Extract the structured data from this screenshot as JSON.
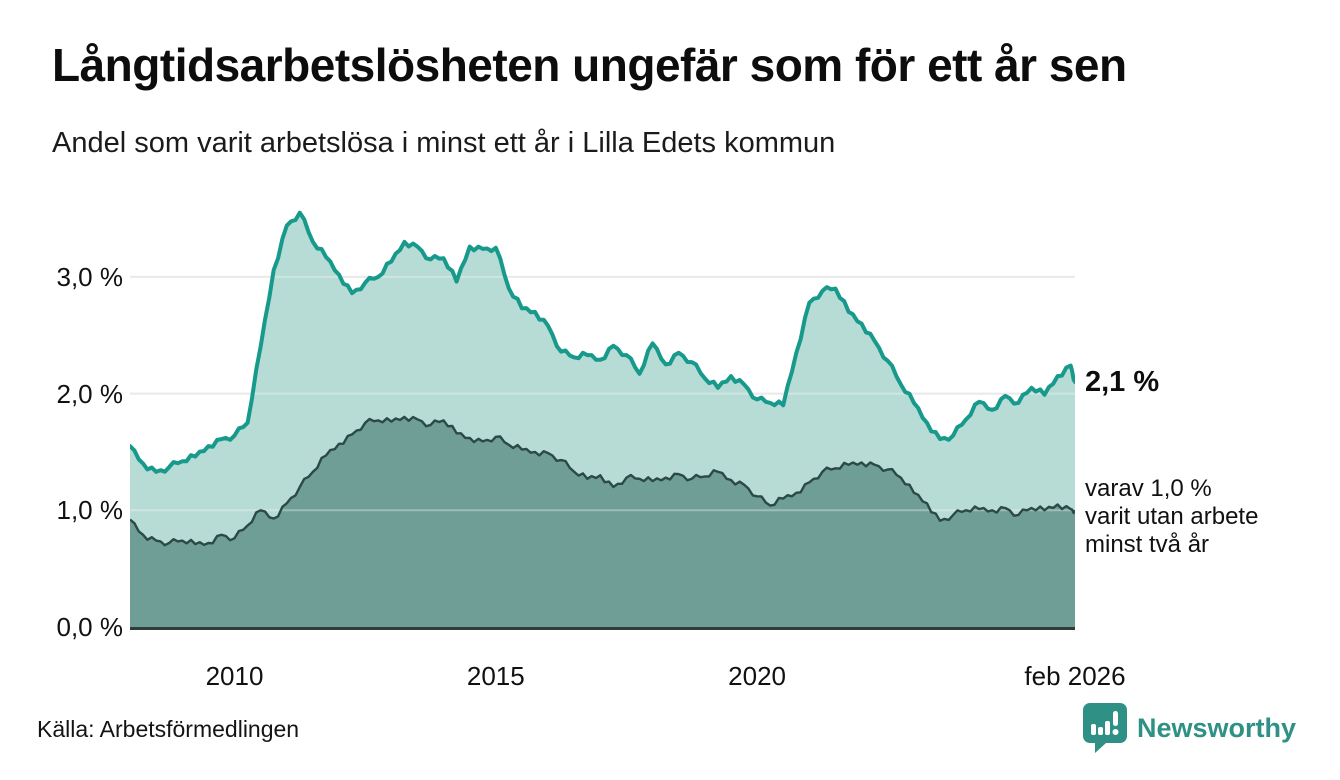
{
  "header": {
    "title": "Långtidsarbetslösheten ungefär som för ett år sen",
    "subtitle": "Andel som varit arbetslösa i minst ett år i Lilla Edets kommun"
  },
  "annotations": {
    "latest_total": "2,1 %",
    "two_year_lines": [
      "varav 1,0 %",
      "varit utan arbete",
      "minst två år"
    ]
  },
  "footer": {
    "source": "Källa: Arbetsförmedlingen",
    "brand": "Newsworthy",
    "brand_icon": "bar-chart-speech-bubble-icon"
  },
  "colors": {
    "line_total": "#179a8b",
    "fill_total": "#b7dbd5",
    "line_two_year": "#2c4a45",
    "fill_two_year": "#6f9e97",
    "grid": "#e0e0e0",
    "grid_over_fill": "rgba(255,255,255,0.32)",
    "axis": "#2e3d3a",
    "brand": "#2f9086",
    "text": "#111111"
  },
  "chart_data": {
    "type": "area",
    "title": "Långtidsarbetslösheten ungefär som för ett år sen",
    "subtitle": "Andel som varit arbetslösa i minst ett år i Lilla Edets kommun",
    "unit": "%",
    "grid": "horizontal",
    "legend_position": "right-annotations",
    "x_domain": [
      2008.0,
      2026.083
    ],
    "ylim": [
      0,
      3.77
    ],
    "yticks": [
      {
        "label": "3,0 %",
        "value": 3
      },
      {
        "label": "2,0 %",
        "value": 2
      },
      {
        "label": "1,0 %",
        "value": 1
      },
      {
        "label": "0,0 %",
        "value": 0
      }
    ],
    "xticks": [
      {
        "label": "2010",
        "year": 2010
      },
      {
        "label": "2015",
        "year": 2015
      },
      {
        "label": "2020",
        "year": 2020
      },
      {
        "label": "feb 2026",
        "year": 2026.083
      }
    ],
    "x": [
      2008,
      2008.25,
      2008.5,
      2008.75,
      2009,
      2009.25,
      2009.5,
      2009.75,
      2010,
      2010.25,
      2010.5,
      2010.75,
      2011,
      2011.25,
      2011.5,
      2011.75,
      2012,
      2012.25,
      2012.5,
      2012.75,
      2013,
      2013.25,
      2013.5,
      2013.75,
      2014,
      2014.25,
      2014.5,
      2014.75,
      2015,
      2015.25,
      2015.5,
      2015.75,
      2016,
      2016.25,
      2016.5,
      2016.75,
      2017,
      2017.25,
      2017.5,
      2017.75,
      2018,
      2018.25,
      2018.5,
      2018.75,
      2019,
      2019.25,
      2019.5,
      2019.75,
      2020,
      2020.25,
      2020.5,
      2020.75,
      2021,
      2021.25,
      2021.5,
      2021.75,
      2022,
      2022.25,
      2022.5,
      2022.75,
      2023,
      2023.25,
      2023.5,
      2023.75,
      2024,
      2024.25,
      2024.5,
      2024.75,
      2025,
      2025.25,
      2025.5,
      2025.75,
      2026,
      2026.083
    ],
    "series": [
      {
        "name": "Arbetslösa minst ett år",
        "latest_value": 2.1,
        "values": [
          1.55,
          1.4,
          1.33,
          1.37,
          1.42,
          1.46,
          1.55,
          1.61,
          1.64,
          1.75,
          2.4,
          3.06,
          3.44,
          3.55,
          3.3,
          3.17,
          3.02,
          2.86,
          2.95,
          3.0,
          3.13,
          3.3,
          3.26,
          3.15,
          3.16,
          2.96,
          3.26,
          3.24,
          3.25,
          2.9,
          2.73,
          2.7,
          2.58,
          2.36,
          2.31,
          2.33,
          2.29,
          2.41,
          2.33,
          2.17,
          2.43,
          2.25,
          2.35,
          2.27,
          2.13,
          2.05,
          2.15,
          2.08,
          1.95,
          1.92,
          1.9,
          2.35,
          2.78,
          2.88,
          2.9,
          2.7,
          2.6,
          2.45,
          2.28,
          2.08,
          1.92,
          1.75,
          1.61,
          1.64,
          1.78,
          1.93,
          1.86,
          1.98,
          1.92,
          2.05,
          1.99,
          2.15,
          2.24,
          2.1
        ]
      },
      {
        "name": "varav utan arbete minst två år",
        "latest_value": 1.0,
        "values": [
          0.92,
          0.79,
          0.74,
          0.72,
          0.74,
          0.71,
          0.72,
          0.79,
          0.76,
          0.87,
          1.0,
          0.93,
          1.06,
          1.2,
          1.33,
          1.47,
          1.57,
          1.65,
          1.75,
          1.77,
          1.76,
          1.8,
          1.78,
          1.73,
          1.77,
          1.66,
          1.62,
          1.59,
          1.63,
          1.56,
          1.52,
          1.5,
          1.49,
          1.43,
          1.33,
          1.27,
          1.3,
          1.2,
          1.28,
          1.27,
          1.25,
          1.28,
          1.31,
          1.27,
          1.29,
          1.33,
          1.26,
          1.22,
          1.12,
          1.04,
          1.1,
          1.15,
          1.24,
          1.33,
          1.36,
          1.39,
          1.41,
          1.39,
          1.35,
          1.28,
          1.15,
          1.06,
          0.91,
          0.96,
          1.0,
          1.01,
          1.0,
          1.02,
          0.96,
          1.02,
          1.0,
          1.05,
          1.01,
          1.0
        ]
      }
    ]
  }
}
